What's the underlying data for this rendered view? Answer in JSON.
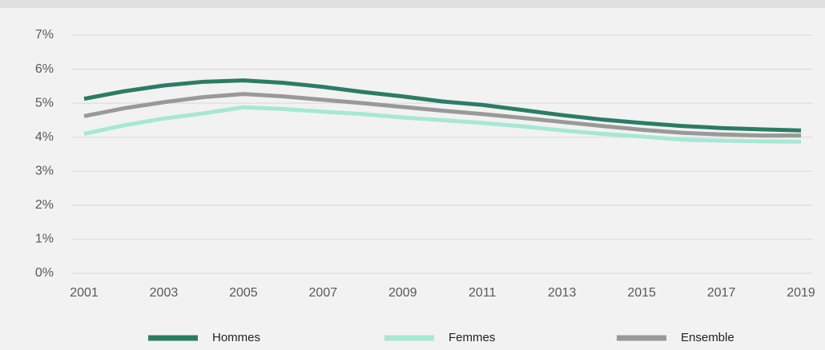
{
  "chart_data": {
    "type": "line",
    "x": [
      2001,
      2002,
      2003,
      2004,
      2005,
      2006,
      2007,
      2008,
      2009,
      2010,
      2011,
      2012,
      2013,
      2014,
      2015,
      2016,
      2017,
      2018,
      2019
    ],
    "xlim": [
      2001,
      2019
    ],
    "xticks": [
      2001,
      2003,
      2005,
      2007,
      2009,
      2011,
      2013,
      2015,
      2017,
      2019
    ],
    "ylim": [
      0,
      7
    ],
    "yticks": [
      {
        "value": 0,
        "label": "0%"
      },
      {
        "value": 1,
        "label": "1%"
      },
      {
        "value": 2,
        "label": "2%"
      },
      {
        "value": 3,
        "label": "3%"
      },
      {
        "value": 4,
        "label": "4%"
      },
      {
        "value": 5,
        "label": "5%"
      },
      {
        "value": 6,
        "label": "6%"
      },
      {
        "value": 7,
        "label": "7%"
      }
    ],
    "grid": true,
    "legend": "bottom",
    "series": [
      {
        "name": "Hommes",
        "color": "#2a7d65",
        "values": [
          5.13,
          5.35,
          5.52,
          5.63,
          5.67,
          5.6,
          5.48,
          5.33,
          5.2,
          5.05,
          4.95,
          4.8,
          4.65,
          4.52,
          4.42,
          4.33,
          4.27,
          4.23,
          4.2
        ]
      },
      {
        "name": "Femmes",
        "color": "#a6e8d4",
        "values": [
          4.1,
          4.35,
          4.55,
          4.7,
          4.88,
          4.83,
          4.75,
          4.68,
          4.58,
          4.5,
          4.42,
          4.32,
          4.2,
          4.1,
          4.02,
          3.93,
          3.9,
          3.88,
          3.87
        ]
      },
      {
        "name": "Ensemble",
        "color": "#999999",
        "values": [
          4.62,
          4.85,
          5.03,
          5.18,
          5.27,
          5.2,
          5.1,
          5.0,
          4.89,
          4.78,
          4.68,
          4.57,
          4.45,
          4.33,
          4.22,
          4.13,
          4.08,
          4.05,
          4.05
        ]
      }
    ]
  }
}
